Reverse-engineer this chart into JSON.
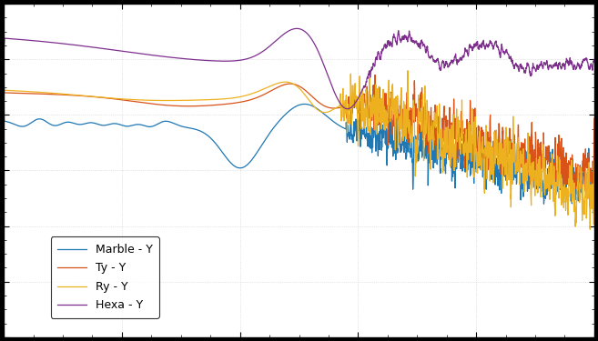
{
  "title": "",
  "xlabel": "",
  "ylabel": "",
  "legend_labels": [
    "Marble - Y",
    "Ty - Y",
    "Ry - Y",
    "Hexa - Y"
  ],
  "colors": [
    "#1f77b4",
    "#d95319",
    "#edb120",
    "#7e2f8e"
  ],
  "figure_bg": "#000000",
  "axes_bg": "#ffffff",
  "grid_color": "#c0c0c0",
  "figsize": [
    6.57,
    3.75
  ],
  "dpi": 100,
  "xlim": [
    0,
    500
  ],
  "ylim": [
    -100,
    20
  ]
}
